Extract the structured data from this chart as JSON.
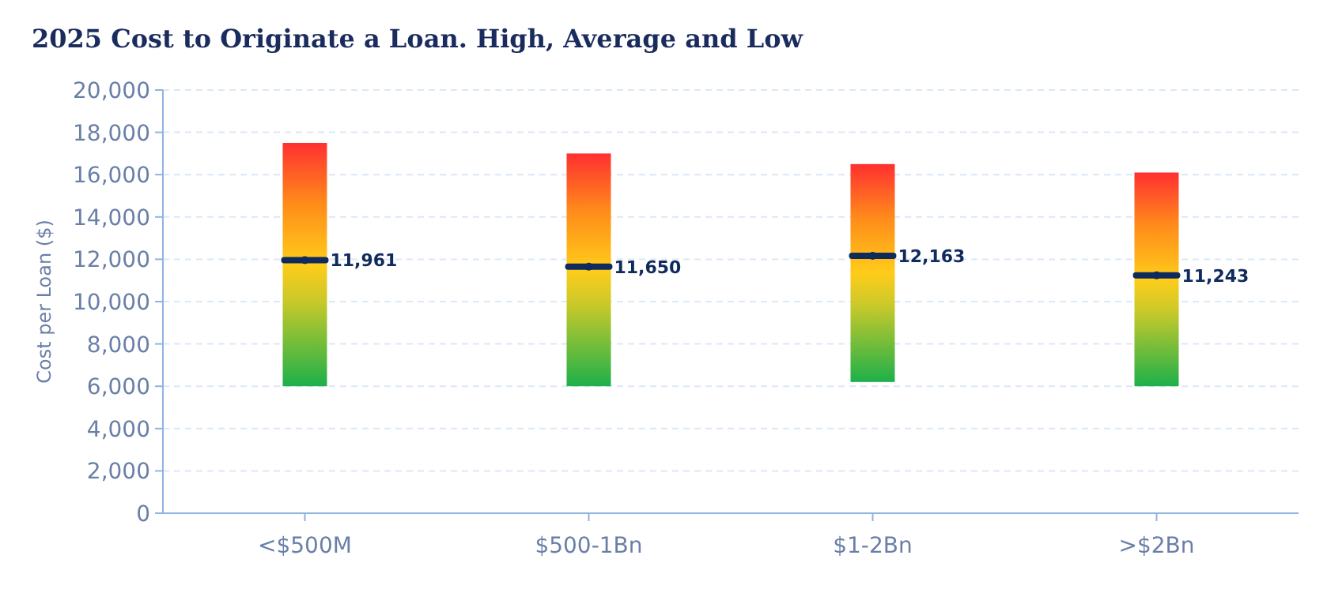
{
  "chart_data": {
    "type": "bar",
    "title": "2025 Cost to Originate a Loan. High, Average and Low",
    "ylabel": "Cost per Loan ($)",
    "categories": [
      "<$500M",
      "$500-1Bn",
      "$1-2Bn",
      ">$2Bn"
    ],
    "series": [
      {
        "color": "#ff8c1a",
        "base": [
          6000,
          6000,
          6200,
          6000
        ],
        "values": [
          11500,
          11000,
          10300,
          10100
        ]
      },
      {
        "type": "scatter",
        "color": "#0f2a5c",
        "values": [
          11961,
          11650,
          12163,
          11243
        ],
        "value_labels": [
          "11,961",
          "11,650",
          "12,163",
          "11,243"
        ]
      }
    ],
    "ylim": [
      0,
      20000
    ],
    "yticks": [
      {
        "value": 0,
        "label": "0"
      },
      {
        "value": 2000,
        "label": "2,000"
      },
      {
        "value": 4000,
        "label": "4,000"
      },
      {
        "value": 6000,
        "label": "6,000"
      },
      {
        "value": 8000,
        "label": "8,000"
      },
      {
        "value": 10000,
        "label": "10,000"
      },
      {
        "value": 12000,
        "label": "12,000"
      },
      {
        "value": 14000,
        "label": "14,000"
      },
      {
        "value": 16000,
        "label": "16,000"
      },
      {
        "value": 18000,
        "label": "18,000"
      },
      {
        "value": 20000,
        "label": "20,000"
      }
    ],
    "grid": "y"
  }
}
